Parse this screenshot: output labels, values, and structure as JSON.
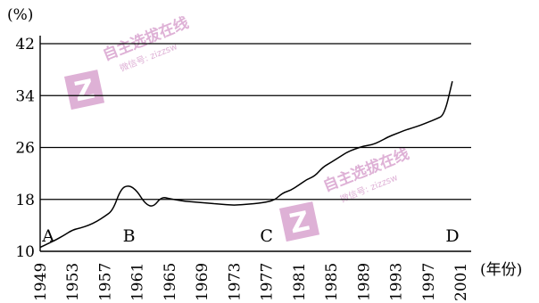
{
  "chart_data": {
    "type": "line",
    "y_unit": "(%)",
    "x_unit": "(年份)",
    "x_ticks": [
      1949,
      1953,
      1957,
      1961,
      1965,
      1969,
      1973,
      1977,
      1981,
      1985,
      1989,
      1993,
      1997,
      2001
    ],
    "y_ticks": [
      10,
      18,
      26,
      34,
      42
    ],
    "xlim": [
      1949,
      2001
    ],
    "ylim": [
      10,
      42
    ],
    "grid": "horizontal lines at 18, 26, 34, 42",
    "point_labels": [
      {
        "label": "A",
        "x": 1950,
        "y": 11.5
      },
      {
        "label": "B",
        "x": 1960,
        "y": 11.5
      },
      {
        "label": "C",
        "x": 1977,
        "y": 11.5
      },
      {
        "label": "D",
        "x": 2000,
        "y": 11.5
      }
    ],
    "series": [
      {
        "x": [
          1949,
          1950,
          1951,
          1952,
          1953,
          1954,
          1955,
          1956,
          1957,
          1958,
          1959,
          1960,
          1961,
          1962,
          1963,
          1964,
          1965,
          1966,
          1967,
          1968,
          1969,
          1970,
          1971,
          1972,
          1973,
          1974,
          1975,
          1976,
          1977,
          1978,
          1979,
          1980,
          1981,
          1982,
          1983,
          1984,
          1985,
          1986,
          1987,
          1988,
          1989,
          1990,
          1991,
          1992,
          1993,
          1994,
          1995,
          1996,
          1997,
          1998,
          1999,
          2000
        ],
        "values": [
          10.6,
          11.2,
          11.8,
          12.5,
          13.3,
          13.6,
          14.0,
          14.6,
          15.4,
          16.3,
          19.7,
          20.2,
          19.3,
          17.3,
          16.8,
          18.4,
          18.1,
          17.9,
          17.7,
          17.6,
          17.5,
          17.4,
          17.3,
          17.2,
          17.1,
          17.2,
          17.3,
          17.4,
          17.6,
          17.9,
          19.0,
          19.4,
          20.2,
          21.1,
          21.6,
          23.0,
          23.7,
          24.5,
          25.3,
          25.8,
          26.2,
          26.4,
          26.9,
          27.6,
          28.1,
          28.6,
          29.0,
          29.4,
          29.9,
          30.4,
          31.0,
          36.2
        ]
      }
    ]
  },
  "watermark": {
    "logo_letter": "Z",
    "brand_text": "自主选拔在线",
    "sub_text": "微信号: zizzsw",
    "color": "#d9a3cf"
  }
}
